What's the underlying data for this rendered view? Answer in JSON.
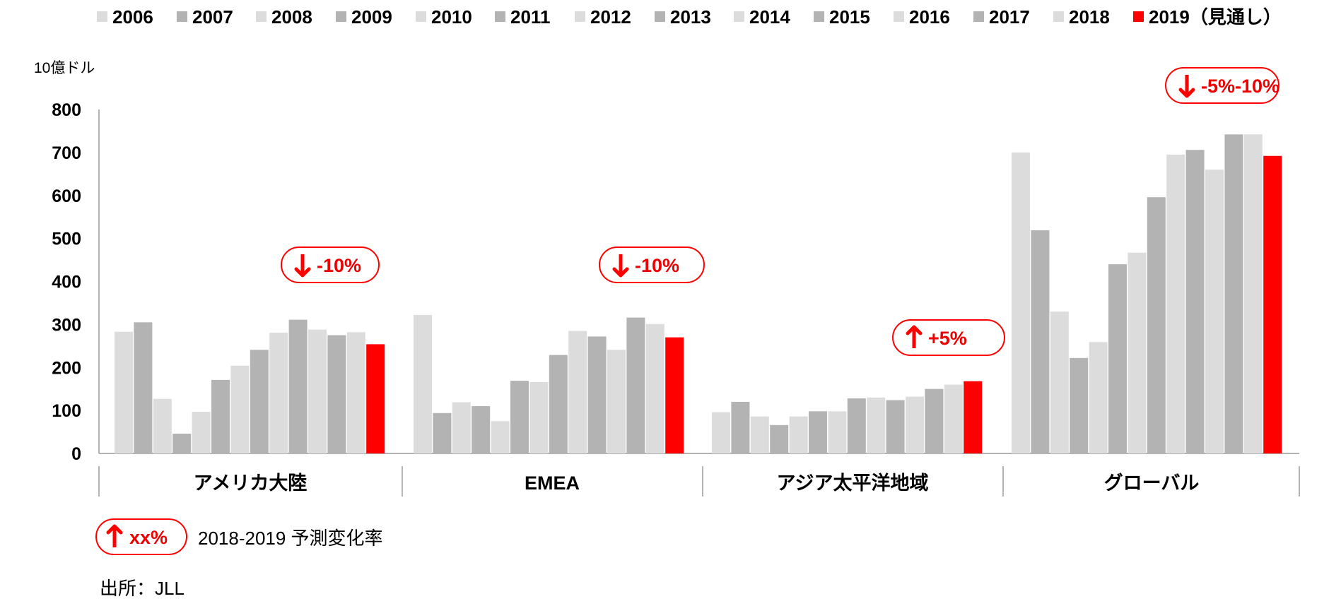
{
  "chart_data": {
    "type": "bar",
    "title": "",
    "unit_label": "10億ドル",
    "ylim": [
      0,
      800
    ],
    "yticks": [
      0,
      100,
      200,
      300,
      400,
      500,
      600,
      700,
      800
    ],
    "grid": false,
    "legend_position": "top",
    "categories": [
      "アメリカ大陸",
      "EMEA",
      "アジア太平洋地域",
      "グローバル"
    ],
    "series": [
      {
        "name": "2006",
        "values": [
          283,
          322,
          96,
          700
        ]
      },
      {
        "name": "2007",
        "values": [
          305,
          94,
          120,
          519
        ]
      },
      {
        "name": "2008",
        "values": [
          127,
          119,
          86,
          330
        ]
      },
      {
        "name": "2009",
        "values": [
          46,
          110,
          66,
          222
        ]
      },
      {
        "name": "2010",
        "values": [
          97,
          75,
          86,
          259
        ]
      },
      {
        "name": "2011",
        "values": [
          171,
          169,
          98,
          440
        ]
      },
      {
        "name": "2012",
        "values": [
          204,
          166,
          98,
          467
        ]
      },
      {
        "name": "2013",
        "values": [
          241,
          229,
          128,
          596
        ]
      },
      {
        "name": "2014",
        "values": [
          281,
          285,
          130,
          695
        ]
      },
      {
        "name": "2015",
        "values": [
          311,
          272,
          124,
          706
        ]
      },
      {
        "name": "2016",
        "values": [
          288,
          241,
          132,
          660
        ]
      },
      {
        "name": "2017",
        "values": [
          275,
          316,
          150,
          742
        ]
      },
      {
        "name": "2018",
        "values": [
          282,
          301,
          160,
          742
        ]
      },
      {
        "name": "2019（見通し）",
        "values": [
          254,
          270,
          168,
          692
        ]
      }
    ],
    "series_colors": [
      "#dcdcdc",
      "#b3b3b3",
      "#dcdcdc",
      "#b3b3b3",
      "#dcdcdc",
      "#b3b3b3",
      "#dcdcdc",
      "#b3b3b3",
      "#dcdcdc",
      "#b3b3b3",
      "#dcdcdc",
      "#b3b3b3",
      "#dcdcdc",
      "#ff0000"
    ],
    "annotations": [
      {
        "category": "アメリカ大陸",
        "direction": "down",
        "text": "-10%"
      },
      {
        "category": "EMEA",
        "direction": "down",
        "text": "-10%"
      },
      {
        "category": "アジア太平洋地域",
        "direction": "up",
        "text": "+5%"
      },
      {
        "category": "グローバル",
        "direction": "down",
        "text": "-5%-10%"
      }
    ]
  },
  "legend_note": {
    "direction": "up",
    "text": "xx%",
    "label": "2018-2019 予測変化率"
  },
  "source": "出所：JLL",
  "colors": {
    "accent": "#ff0000",
    "light_gray": "#dcdcdc",
    "dark_gray": "#b3b3b3",
    "axis": "#888888"
  }
}
